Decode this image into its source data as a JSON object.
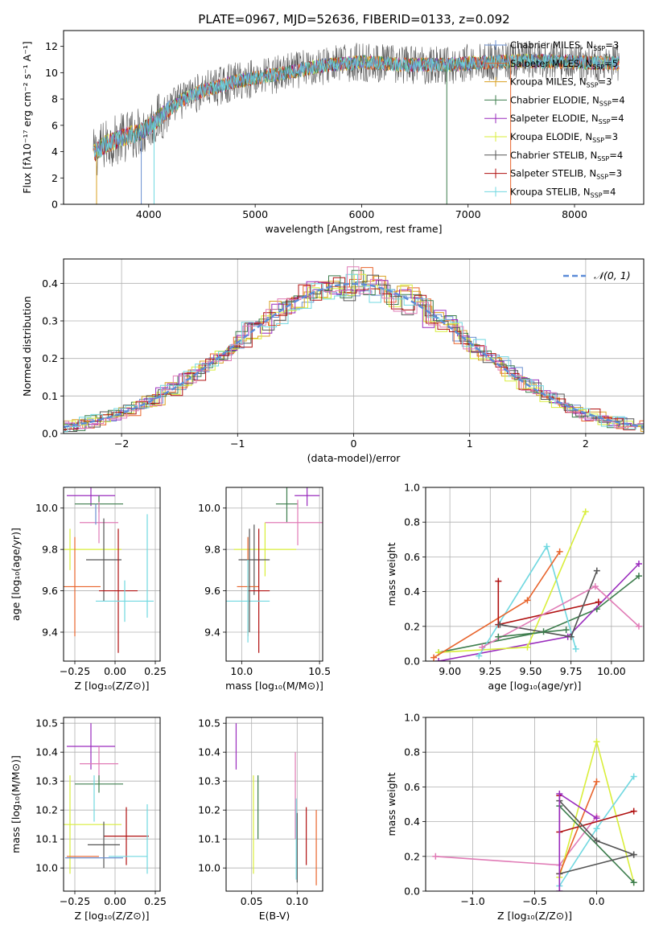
{
  "figure_title": "PLATE=0967, MJD=52636, FIBERID=0133, z=0.092",
  "colors": {
    "Chabrier MILES": "#6a8fd0",
    "Salpeter MILES": "#e8642c",
    "Kroupa MILES": "#d9a020",
    "Chabrier ELODIE": "#3d7d4d",
    "Salpeter ELODIE": "#9a2bbd",
    "Kroupa ELODIE": "#d9ee3a",
    "Chabrier STELIB": "#555555",
    "Salpeter STELIB": "#b01010",
    "Kroupa STELIB": "#70d8e0",
    "pink": "#e07bb6",
    "brown": "#c07a40",
    "gauss": "#5b8bd8"
  },
  "chart_data": [
    {
      "id": "spectrum",
      "type": "line",
      "xlabel": "wavelength [Angstrom, rest frame]",
      "ylabel": "Flux [fλ10⁻¹⁷ erg cm⁻² s⁻¹ A⁻¹]",
      "xlim": [
        3200,
        8650
      ],
      "ylim": [
        0,
        13.2
      ],
      "xticks": [
        4000,
        5000,
        6000,
        7000,
        8000
      ],
      "yticks": [
        0,
        2,
        4,
        6,
        8,
        10,
        12
      ],
      "x_range_data": [
        3480,
        8420
      ],
      "continuum": {
        "x": [
          3480,
          3600,
          3800,
          3950,
          4100,
          4300,
          4500,
          4800,
          5000,
          5300,
          5600,
          6000,
          6400,
          6800,
          7200,
          7600,
          8000,
          8420
        ],
        "y": [
          3.8,
          4.6,
          5.2,
          5.6,
          6.6,
          7.9,
          8.6,
          9.3,
          9.6,
          10.0,
          10.5,
          10.8,
          10.6,
          10.6,
          10.8,
          10.9,
          10.8,
          10.7
        ]
      },
      "legend": [
        {
          "label": "Chabrier MILES",
          "n": "3"
        },
        {
          "label": "Salpeter MILES",
          "n": "5"
        },
        {
          "label": "Kroupa MILES",
          "n": "3"
        },
        {
          "label": "Chabrier ELODIE",
          "n": "4"
        },
        {
          "label": "Salpeter ELODIE",
          "n": "4"
        },
        {
          "label": "Kroupa ELODIE",
          "n": "3"
        },
        {
          "label": "Chabrier STELIB",
          "n": "4"
        },
        {
          "label": "Salpeter STELIB",
          "n": "3"
        },
        {
          "label": "Kroupa STELIB",
          "n": "4"
        }
      ]
    },
    {
      "id": "residual-hist",
      "type": "histogram",
      "xlabel": "(data-model)/error",
      "ylabel": "Normed distribution",
      "xlim": [
        -2.5,
        2.5
      ],
      "ylim": [
        0,
        0.465
      ],
      "xticks": [
        -2,
        -1,
        0,
        1,
        2
      ],
      "yticks": [
        0.0,
        0.1,
        0.2,
        0.3,
        0.4
      ],
      "bin_width": 0.1,
      "legend_label": "𝒩(0, 1)"
    },
    {
      "id": "age-vs-Z",
      "type": "errorbar",
      "xlabel": "Z [log₁₀(Z/Z⊙)]",
      "ylabel": "age  [log₁₀(age/yr)]",
      "xlim": [
        -0.32,
        0.28
      ],
      "ylim": [
        9.26,
        10.1
      ],
      "xticks": [
        -0.25,
        0.0,
        0.25
      ],
      "yticks": [
        9.4,
        9.6,
        9.8,
        10.0
      ],
      "points": [
        {
          "c": "Salpeter ELODIE",
          "x": -0.15,
          "xerr": 0.15,
          "y": 10.06,
          "yerr": 0.05
        },
        {
          "c": "Chabrier ELODIE",
          "x": -0.1,
          "xerr": 0.15,
          "y": 10.02,
          "yerr": 0.04
        },
        {
          "c": "pink",
          "x": -0.1,
          "xerr": 0.12,
          "y": 9.93,
          "yerr": 0.1
        },
        {
          "c": "Kroupa ELODIE",
          "x": -0.28,
          "xerr": 0.32,
          "y": 9.8,
          "yerr": 0.1
        },
        {
          "c": "Chabrier STELIB",
          "x": -0.07,
          "xerr": 0.11,
          "y": 9.75,
          "yerr": 0.2
        },
        {
          "c": "Salpeter MILES",
          "x": -0.25,
          "xerr": 0.16,
          "y": 9.62,
          "yerr": 0.24
        },
        {
          "c": "Salpeter STELIB",
          "x": 0.02,
          "xerr": 0.12,
          "y": 9.6,
          "yerr": 0.3
        },
        {
          "c": "Kroupa STELIB",
          "x": 0.06,
          "xerr": 0.18,
          "y": 9.55,
          "yerr": 0.1
        },
        {
          "c": "Kroupa STELIB",
          "x": 0.2,
          "xerr": 0.0,
          "y": 9.72,
          "yerr": 0.25
        },
        {
          "c": "Chabrier MILES",
          "x": -0.12,
          "xerr": 0.0,
          "y": 9.97,
          "yerr": 0.05
        }
      ]
    },
    {
      "id": "age-vs-mass",
      "type": "errorbar",
      "xlabel": "mass [log₁₀(M/M⊙)]",
      "xlim": [
        9.9,
        10.52
      ],
      "ylim": [
        9.26,
        10.1
      ],
      "xticks": [
        10.0,
        10.5
      ],
      "yticks": [
        9.4,
        9.6,
        9.8,
        10.0
      ],
      "points": [
        {
          "c": "Salpeter ELODIE",
          "x": 10.42,
          "xerr": 0.08,
          "y": 10.06,
          "yerr": 0.05
        },
        {
          "c": "Chabrier ELODIE",
          "x": 10.29,
          "xerr": 0.07,
          "y": 10.02,
          "yerr": 0.09
        },
        {
          "c": "pink",
          "x": 10.36,
          "xerr": 0.21,
          "y": 9.93,
          "yerr": 0.11
        },
        {
          "c": "Kroupa ELODIE",
          "x": 10.15,
          "xerr": 0.2,
          "y": 9.8,
          "yerr": 0.13
        },
        {
          "c": "Chabrier STELIB",
          "x": 10.08,
          "xerr": 0.1,
          "y": 9.75,
          "yerr": 0.17
        },
        {
          "c": "Salpeter MILES",
          "x": 10.04,
          "xerr": 0.07,
          "y": 9.62,
          "yerr": 0.24
        },
        {
          "c": "Salpeter STELIB",
          "x": 10.11,
          "xerr": 0.07,
          "y": 9.6,
          "yerr": 0.3
        },
        {
          "c": "Kroupa STELIB",
          "x": 10.04,
          "xerr": 0.14,
          "y": 9.55,
          "yerr": 0.2
        },
        {
          "c": "Chabrier STELIB",
          "x": 10.05,
          "xerr": 0.0,
          "y": 9.65,
          "yerr": 0.25
        }
      ]
    },
    {
      "id": "weight-vs-age",
      "type": "line",
      "xlabel": "age  [log₁₀(age/yr)]",
      "ylabel": "mass weight",
      "xlim": [
        8.85,
        10.2
      ],
      "ylim": [
        0,
        1
      ],
      "xticks": [
        9.0,
        9.25,
        9.5,
        9.75,
        10.0
      ],
      "yticks": [
        0.0,
        0.2,
        0.4,
        0.6,
        0.8,
        1.0
      ],
      "series": [
        {
          "c": "Chabrier ELODIE",
          "x": [
            8.93,
            9.58,
            9.91,
            10.17
          ],
          "y": [
            0.05,
            0.17,
            0.3,
            0.49
          ]
        },
        {
          "c": "Salpeter ELODIE",
          "x": [
            8.93,
            9.73,
            10.17
          ],
          "y": [
            0.0,
            0.14,
            0.56
          ]
        },
        {
          "c": "Kroupa ELODIE",
          "x": [
            8.93,
            9.48,
            9.84
          ],
          "y": [
            0.05,
            0.08,
            0.86
          ]
        },
        {
          "c": "Kroupa STELIB",
          "x": [
            9.18,
            9.6,
            9.78
          ],
          "y": [
            0.03,
            0.66,
            0.07
          ]
        },
        {
          "c": "Salpeter MILES",
          "x": [
            8.9,
            9.48,
            9.68
          ],
          "y": [
            0.02,
            0.35,
            0.63
          ]
        },
        {
          "c": "Salpeter STELIB",
          "x": [
            9.3,
            9.3,
            9.92
          ],
          "y": [
            0.46,
            0.21,
            0.34
          ]
        },
        {
          "c": "Chabrier STELIB",
          "x": [
            9.31,
            9.75,
            9.91
          ],
          "y": [
            0.21,
            0.14,
            0.52
          ]
        },
        {
          "c": "pink",
          "x": [
            9.2,
            9.9,
            10.17
          ],
          "y": [
            0.08,
            0.43,
            0.2
          ]
        },
        {
          "c": "Chabrier ELODIE",
          "x": [
            9.3,
            9.72
          ],
          "y": [
            0.14,
            0.18
          ]
        }
      ]
    },
    {
      "id": "mass-vs-Z",
      "type": "errorbar",
      "xlabel": "Z [log₁₀(Z/Z⊙)]",
      "ylabel": "mass [log₁₀(M/M⊙)]",
      "xlim": [
        -0.32,
        0.28
      ],
      "ylim": [
        9.92,
        10.52
      ],
      "xticks": [
        -0.25,
        0.0,
        0.25
      ],
      "yticks": [
        10.0,
        10.1,
        10.2,
        10.3,
        10.4,
        10.5
      ],
      "points": [
        {
          "c": "Salpeter ELODIE",
          "x": -0.15,
          "xerr": 0.15,
          "y": 10.42,
          "yerr": 0.08
        },
        {
          "c": "pink",
          "x": -0.1,
          "xerr": 0.12,
          "y": 10.36,
          "yerr": 0.06
        },
        {
          "c": "Chabrier ELODIE",
          "x": -0.1,
          "xerr": 0.15,
          "y": 10.29,
          "yerr": 0.03
        },
        {
          "c": "Kroupa ELODIE",
          "x": -0.28,
          "xerr": 0.32,
          "y": 10.15,
          "yerr": 0.17
        },
        {
          "c": "Salpeter STELIB",
          "x": 0.07,
          "xerr": 0.14,
          "y": 10.11,
          "yerr": 0.1
        },
        {
          "c": "Chabrier STELIB",
          "x": -0.07,
          "xerr": 0.1,
          "y": 10.08,
          "yerr": 0.08
        },
        {
          "c": "Salpeter MILES",
          "x": -0.2,
          "xerr": 0.1,
          "y": 10.04,
          "yerr": 0.0
        },
        {
          "c": "Kroupa STELIB",
          "x": 0.08,
          "xerr": 0.12,
          "y": 10.04,
          "yerr": 0.0
        },
        {
          "c": "Kroupa STELIB",
          "x": 0.2,
          "xerr": 0.0,
          "y": 10.1,
          "yerr": 0.12
        },
        {
          "c": "Chabrier MILES",
          "x": -0.13,
          "xerr": 0.18,
          "y": 10.035,
          "yerr": 0.0
        },
        {
          "c": "Kroupa STELIB",
          "x": -0.13,
          "xerr": 0.0,
          "y": 10.24,
          "yerr": 0.08
        }
      ]
    },
    {
      "id": "mass-vs-ebv",
      "type": "errorbar",
      "xlabel": "E(B-V)",
      "xlim": [
        0.022,
        0.128
      ],
      "ylim": [
        9.92,
        10.52
      ],
      "xticks": [
        0.05,
        0.1
      ],
      "yticks": [
        10.0,
        10.1,
        10.2,
        10.3,
        10.4,
        10.5
      ],
      "points": [
        {
          "c": "Salpeter ELODIE",
          "x": 0.033,
          "y": 10.42,
          "yerr": 0.08
        },
        {
          "c": "Kroupa ELODIE",
          "x": 0.052,
          "y": 10.15,
          "yerr": 0.17
        },
        {
          "c": "Chabrier ELODIE",
          "x": 0.057,
          "y": 10.21,
          "yerr": 0.11
        },
        {
          "c": "pink",
          "x": 0.098,
          "y": 10.25,
          "yerr": 0.15
        },
        {
          "c": "Chabrier STELIB",
          "x": 0.1,
          "y": 10.07,
          "yerr": 0.12
        },
        {
          "c": "Kroupa STELIB",
          "x": 0.099,
          "y": 10.1,
          "yerr": 0.14
        },
        {
          "c": "Salpeter STELIB",
          "x": 0.11,
          "y": 10.11,
          "yerr": 0.1
        },
        {
          "c": "Salpeter MILES",
          "x": 0.121,
          "y": 10.07,
          "yerr": 0.13
        }
      ]
    },
    {
      "id": "weight-vs-Z",
      "type": "line",
      "xlabel": "Z [log₁₀(Z/Z⊙)]",
      "ylabel": "mass weight",
      "xlim": [
        -1.38,
        0.38
      ],
      "ylim": [
        0,
        1
      ],
      "xticks": [
        -1.0,
        -0.5,
        0.0
      ],
      "yticks": [
        0.0,
        0.2,
        0.4,
        0.6,
        0.8,
        1.0
      ],
      "series": [
        {
          "c": "pink",
          "x": [
            -1.3,
            -0.3,
            0.0
          ],
          "y": [
            0.2,
            0.15,
            0.43
          ]
        },
        {
          "c": "Kroupa ELODIE",
          "x": [
            -0.3,
            0.0,
            0.3
          ],
          "y": [
            0.08,
            0.86,
            0.05
          ]
        },
        {
          "c": "Kroupa STELIB",
          "x": [
            -0.3,
            0.0,
            0.3
          ],
          "y": [
            0.03,
            0.36,
            0.66
          ]
        },
        {
          "c": "Salpeter MILES",
          "x": [
            -0.3,
            0.0
          ],
          "y": [
            0.1,
            0.63
          ]
        },
        {
          "c": "Salpeter STELIB",
          "x": [
            -0.3,
            -0.3,
            0.3
          ],
          "y": [
            0.55,
            0.34,
            0.46
          ]
        },
        {
          "c": "Chabrier ELODIE",
          "x": [
            -0.3,
            0.3
          ],
          "y": [
            0.49,
            0.05
          ]
        },
        {
          "c": "Chabrier STELIB",
          "x": [
            -0.3,
            0.0,
            0.3
          ],
          "y": [
            0.52,
            0.29,
            0.21
          ]
        },
        {
          "c": "Chabrier STELIB",
          "x": [
            -0.3,
            0.3
          ],
          "y": [
            0.1,
            0.21
          ]
        },
        {
          "c": "Salpeter ELODIE",
          "x": [
            -0.3,
            -0.3,
            0.0
          ],
          "y": [
            0.0,
            0.56,
            0.42
          ]
        }
      ]
    }
  ]
}
